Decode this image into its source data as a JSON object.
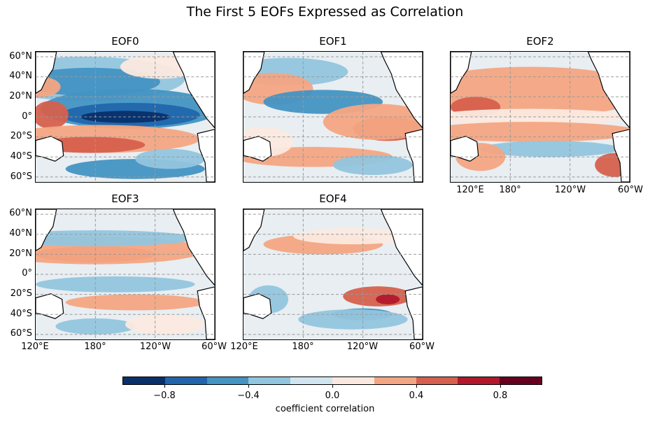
{
  "title": "The First 5 EOFs Expressed as Correlation",
  "panels": [
    {
      "title": "EOF0"
    },
    {
      "title": "EOF1"
    },
    {
      "title": "EOF2"
    },
    {
      "title": "EOF3"
    },
    {
      "title": "EOF4"
    }
  ],
  "lat_ticks": [
    "60°N",
    "40°N",
    "20°N",
    "0°",
    "20°S",
    "40°S",
    "60°S"
  ],
  "lon_ticks": [
    "120°E",
    "180°",
    "120°W",
    "60°W"
  ],
  "colorbar": {
    "label": "coefficient correlation",
    "ticks": [
      "−0.8",
      "−0.4",
      "0.0",
      "0.4",
      "0.8"
    ],
    "colors": [
      "#08306b",
      "#2166ac",
      "#4393c3",
      "#92c5de",
      "#d1e5f0",
      "#fbe9df",
      "#f4a582",
      "#d6604d",
      "#b2182b",
      "#67001f"
    ]
  },
  "colors": {
    "land_outline": "#000000",
    "gridline": "#999999",
    "neutral": "#e8eef2"
  }
}
